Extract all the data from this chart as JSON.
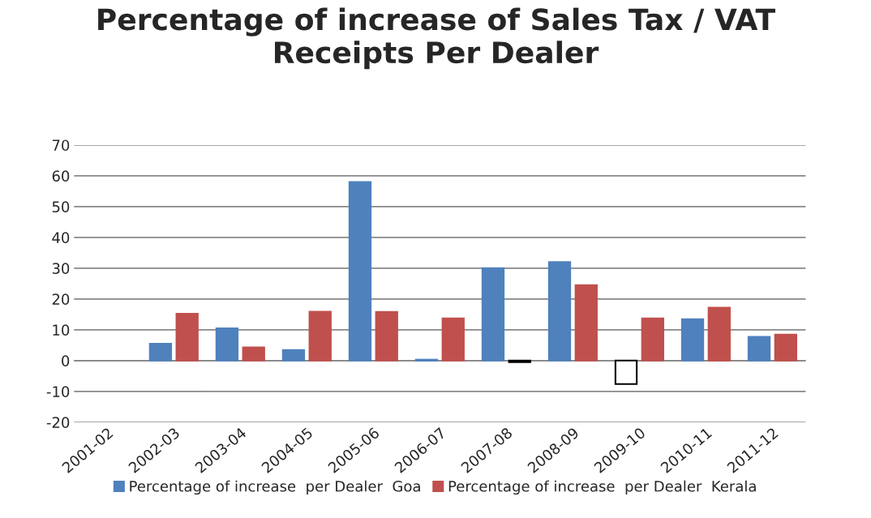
{
  "chart_data": {
    "type": "bar",
    "title": "Percentage of increase of Sales Tax / VAT\nReceipts Per Dealer",
    "categories": [
      "2001-02",
      "2002-03",
      "2003-04",
      "2004-05",
      "2005-06",
      "2006-07",
      "2007-08",
      "2008-09",
      "2009-10",
      "2010-11",
      "2011-12"
    ],
    "series": [
      {
        "name": "Percentage of increase  per Dealer  Goa",
        "color": "#4f81bd",
        "colors": [
          "#4f81bd",
          "#4f81bd",
          "#4f81bd",
          "#4f81bd",
          "#4f81bd",
          "#4f81bd",
          "#4f81bd",
          "#4f81bd",
          "#ffffff",
          "#4f81bd",
          "#4f81bd"
        ],
        "values": [
          null,
          5.5,
          10.5,
          3.4,
          58,
          0.3,
          30,
          32,
          -7.6,
          13.4,
          7.7
        ]
      },
      {
        "name": "Percentage of increase  per Dealer  Kerala",
        "color": "#c0504d",
        "colors": [
          "#c0504d",
          "#c0504d",
          "#c0504d",
          "#c0504d",
          "#c0504d",
          "#c0504d",
          "#000000",
          "#c0504d",
          "#c0504d",
          "#c0504d",
          "#c0504d"
        ],
        "values": [
          null,
          15.2,
          4.3,
          15.9,
          15.8,
          13.7,
          -0.5,
          24.5,
          13.7,
          17.2,
          8.4
        ]
      }
    ],
    "ylim": [
      -20,
      70
    ],
    "yticks": [
      -20,
      -10,
      0,
      10,
      20,
      30,
      40,
      50,
      60,
      70
    ],
    "grid": "y",
    "legend": "bottom"
  }
}
